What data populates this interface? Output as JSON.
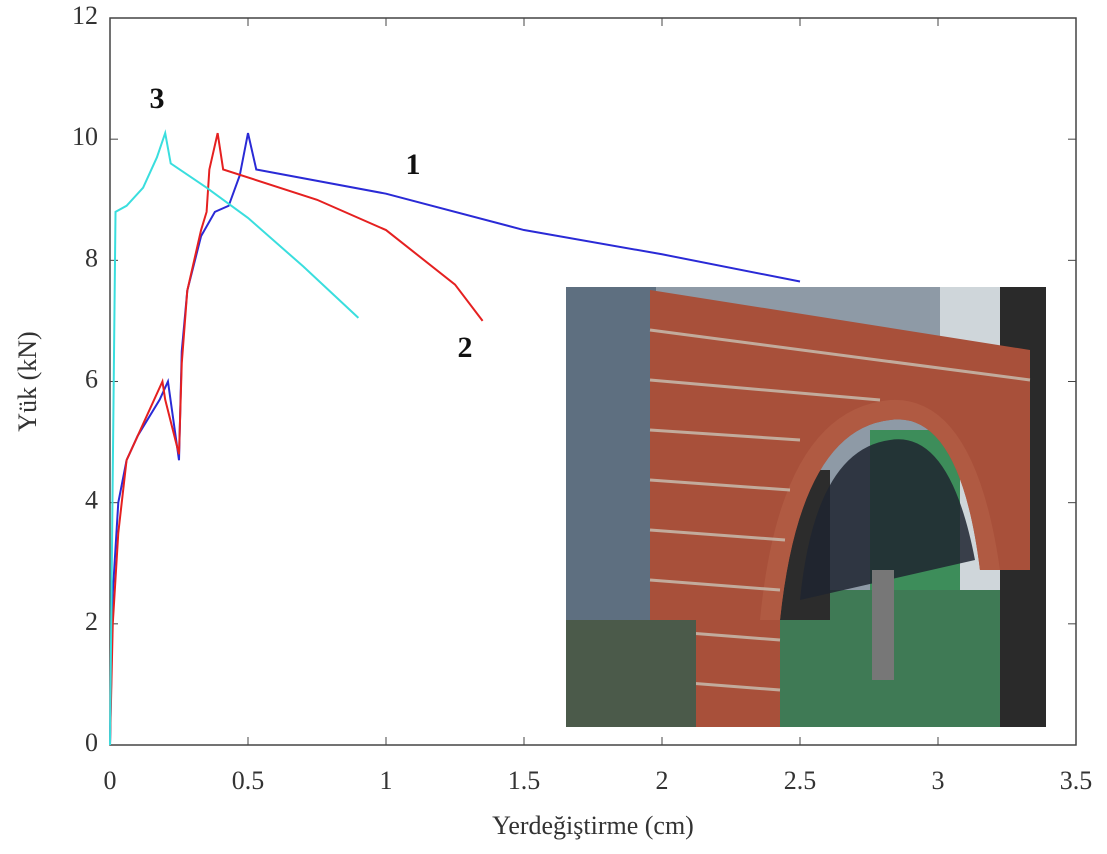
{
  "chart_data": {
    "type": "line",
    "xlabel": "Yerdeğiştirme (cm)",
    "ylabel": "Yük (kN)",
    "xlim": [
      0,
      3.5
    ],
    "ylim": [
      0,
      12
    ],
    "xticks": [
      0,
      0.5,
      1,
      1.5,
      2,
      2.5,
      3,
      3.5
    ],
    "yticks": [
      0,
      2,
      4,
      6,
      8,
      10,
      12
    ],
    "series": [
      {
        "name": "1",
        "color": "#2a2ad6",
        "x": [
          0,
          0.01,
          0.03,
          0.06,
          0.1,
          0.18,
          0.21,
          0.25,
          0.26,
          0.28,
          0.33,
          0.38,
          0.43,
          0.47,
          0.5,
          0.53,
          1.0,
          1.5,
          2.0,
          2.5
        ],
        "values": [
          0,
          2.5,
          4,
          4.7,
          5.1,
          5.7,
          6.0,
          4.7,
          6.5,
          7.5,
          8.4,
          8.8,
          8.9,
          9.4,
          10.1,
          9.5,
          9.1,
          8.5,
          8.1,
          7.65
        ]
      },
      {
        "name": "2",
        "color": "#e52020",
        "x": [
          0,
          0.01,
          0.03,
          0.06,
          0.1,
          0.19,
          0.2,
          0.25,
          0.26,
          0.28,
          0.33,
          0.35,
          0.36,
          0.39,
          0.41,
          0.75,
          1.0,
          1.25,
          1.35
        ],
        "values": [
          0,
          2,
          3.5,
          4.7,
          5.1,
          6.0,
          5.7,
          4.8,
          6.3,
          7.5,
          8.5,
          8.8,
          9.5,
          10.1,
          9.5,
          9.0,
          8.5,
          7.6,
          7.0
        ]
      },
      {
        "name": "3",
        "color": "#3adede",
        "x": [
          0,
          0.01,
          0.02,
          0.06,
          0.12,
          0.17,
          0.2,
          0.22,
          0.35,
          0.5,
          0.7,
          0.9
        ],
        "values": [
          0,
          4.5,
          8.8,
          8.9,
          9.2,
          9.7,
          10.1,
          9.6,
          9.2,
          8.7,
          7.9,
          7.05
        ]
      }
    ]
  }
}
